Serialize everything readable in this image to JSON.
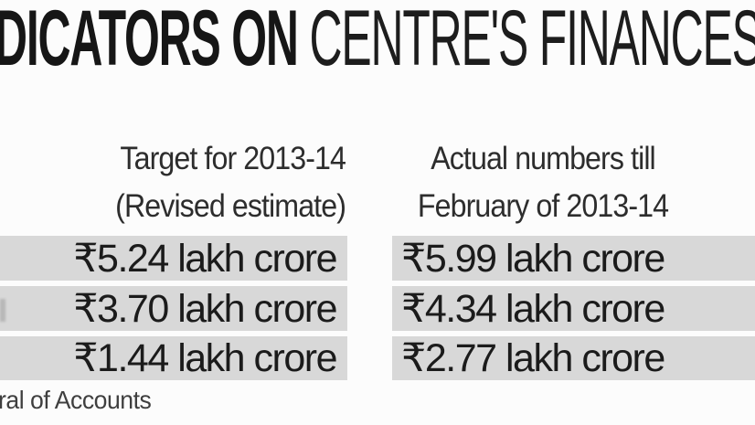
{
  "colors": {
    "background": "#fcfcfc",
    "row_band": "#d8d8d8",
    "title_text": "#161616",
    "header_text": "#2d2d2d",
    "value_text": "#1b1b1b",
    "footer_text": "#3f3f3f"
  },
  "title": {
    "bold_part": "DICATORS ON",
    "light_part": " CENTRE'S FINANCES"
  },
  "table": {
    "col1_header_line1": "Target for 2013-14",
    "col1_header_line2": "(Revised estimate)",
    "col2_header_line1": "Actual numbers till",
    "col2_header_line2": "February of 2013-14",
    "rows": [
      {
        "target": "₹5.24 lakh crore",
        "actual": "₹5.99 lakh crore"
      },
      {
        "target": "₹3.70 lakh crore",
        "actual": "₹4.34 lakh crore"
      },
      {
        "target": "₹1.44 lakh crore",
        "actual": "₹2.77 lakh crore"
      }
    ]
  },
  "footer": {
    "source_fragment": "ral of Accounts"
  },
  "chart_data": {
    "type": "table",
    "title": "DICATORS ON CENTRE'S FINANCES",
    "columns": [
      "Target for 2013-14 (Revised estimate)",
      "Actual numbers till February of 2013-14"
    ],
    "rows": [
      [
        "₹5.24 lakh crore",
        "₹5.99 lakh crore"
      ],
      [
        "₹3.70 lakh crore",
        "₹4.34 lakh crore"
      ],
      [
        "₹1.44 lakh crore",
        "₹2.77 lakh crore"
      ]
    ],
    "series": [
      {
        "name": "Target for 2013-14 (Revised estimate)",
        "values": [
          5.24,
          3.7,
          1.44
        ]
      },
      {
        "name": "Actual numbers till February of 2013-14",
        "values": [
          5.99,
          4.34,
          2.77
        ]
      }
    ],
    "unit": "lakh crore (₹)",
    "source_note_visible": "ral of Accounts",
    "layout": {
      "row_shading": "alternating gray bands on white",
      "grid": false
    }
  }
}
